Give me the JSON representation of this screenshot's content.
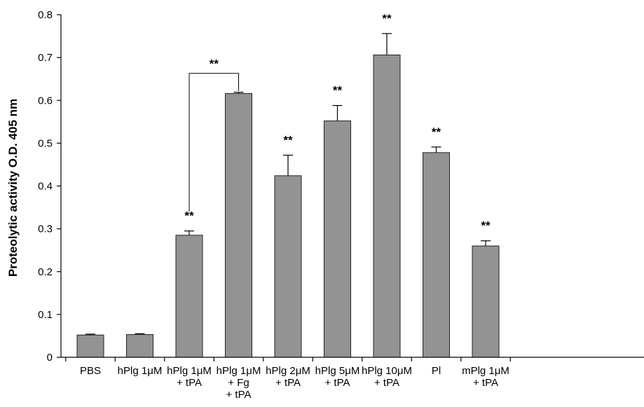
{
  "colors": {
    "bar_fill": "#939393",
    "bar_stroke": "#222222",
    "axis": "#000000"
  },
  "chart_data": {
    "type": "bar",
    "title": "",
    "xlabel": "",
    "ylabel": "Proteolytic activity  O.D. 405 nm",
    "ylim": [
      0,
      0.8
    ],
    "y_ticks": [
      {
        "value": 0,
        "label": "0"
      },
      {
        "value": 0.1,
        "label": "0.1"
      },
      {
        "value": 0.2,
        "label": "0.2"
      },
      {
        "value": 0.3,
        "label": "0.3"
      },
      {
        "value": 0.4,
        "label": "0.4"
      },
      {
        "value": 0.5,
        "label": "0.5"
      },
      {
        "value": 0.6,
        "label": "0.6"
      },
      {
        "value": 0.7,
        "label": "0.7"
      },
      {
        "value": 0.8,
        "label": "0.8"
      }
    ],
    "categories": [
      [
        "PBS"
      ],
      [
        "hPlg 1μM"
      ],
      [
        "hPlg 1μM",
        "+ tPA"
      ],
      [
        "hPlg 1μM",
        "+ Fg",
        "+ tPA"
      ],
      [
        "hPlg 2μM",
        "+ tPA"
      ],
      [
        "hPlg 5μM",
        "+ tPA"
      ],
      [
        "hPlg 10μM",
        "+ tPA"
      ],
      [
        "Pl"
      ],
      [
        "mPlg 1μM",
        "+ tPA"
      ]
    ],
    "values": [
      0.052,
      0.053,
      0.285,
      0.616,
      0.424,
      0.552,
      0.706,
      0.478,
      0.26
    ],
    "errors": [
      0.002,
      0.002,
      0.01,
      0.003,
      0.048,
      0.036,
      0.05,
      0.013,
      0.012
    ],
    "significance": [
      "",
      "",
      "**",
      "",
      "**",
      "**",
      "**",
      "**",
      "**"
    ],
    "bracket": {
      "from": 2,
      "to": 3,
      "label": "**"
    },
    "grid": false,
    "legend": "none"
  }
}
